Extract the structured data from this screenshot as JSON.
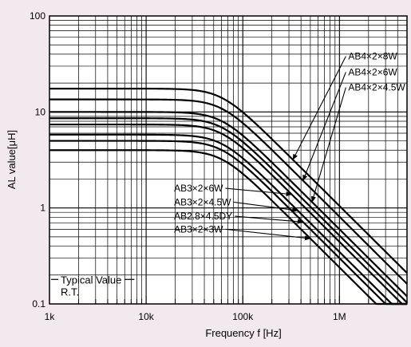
{
  "colors": {
    "background": "#f2e9ee",
    "plot_background": "#ffffff",
    "ink": "#000000"
  },
  "chart_data": {
    "type": "line",
    "title": "",
    "xlabel": "Frequency f  [Hz]",
    "ylabel": "AL value[μH]",
    "x_scale": "log",
    "y_scale": "log",
    "xlim": [
      1000,
      5000000
    ],
    "ylim": [
      0.1,
      100
    ],
    "grid": true,
    "x_ticks": [
      {
        "value": 1000,
        "label": "1k"
      },
      {
        "value": 10000,
        "label": "10k"
      },
      {
        "value": 100000,
        "label": "100k"
      },
      {
        "value": 1000000,
        "label": "1M"
      }
    ],
    "y_ticks": [
      {
        "value": 0.1,
        "label": "0.1"
      },
      {
        "value": 1,
        "label": "1"
      },
      {
        "value": 10,
        "label": "10"
      },
      {
        "value": 100,
        "label": "100"
      }
    ],
    "rolloff_slope": -1,
    "series": [
      {
        "name": "AB4×2×8W",
        "flat_value": 17.5,
        "corner_hz": 60000
      },
      {
        "name": "AB4×2×6W",
        "flat_value": 13.5,
        "corner_hz": 60000
      },
      {
        "name": "AB4×2×4.5W",
        "flat_value": 10.0,
        "corner_hz": 60000
      },
      {
        "name": "",
        "flat_value": 8.6,
        "corner_hz": 60000
      },
      {
        "name": "AB3×2×6W",
        "flat_value": 7.4,
        "corner_hz": 60000
      },
      {
        "name": "AB3×2×4.5W",
        "flat_value": 5.8,
        "corner_hz": 60000
      },
      {
        "name": "AB2.8×4.5DY",
        "flat_value": 5.0,
        "corner_hz": 60000
      },
      {
        "name": "AB3×2×3W",
        "flat_value": 4.0,
        "corner_hz": 60000
      }
    ],
    "annotations": [
      {
        "text": "AB4×2×8W",
        "series_index": 0,
        "point_hz": 330000,
        "label_hz": 1100000,
        "label_value": 38
      },
      {
        "text": "AB4×2×6W",
        "series_index": 1,
        "point_hz": 420000,
        "label_hz": 1100000,
        "label_value": 26
      },
      {
        "text": "AB4×2×4.5W",
        "series_index": 2,
        "point_hz": 520000,
        "label_hz": 1100000,
        "label_value": 18
      },
      {
        "text": "AB3×2×6W",
        "series_index": 4,
        "point_hz": 320000,
        "label_hz": 10000,
        "label_value": 1.6
      },
      {
        "text": "AB3×2×4.5W",
        "series_index": 5,
        "point_hz": 370000,
        "label_hz": 10000,
        "label_value": 1.15
      },
      {
        "text": "AB2.8×4.5DY",
        "series_index": 6,
        "point_hz": 420000,
        "label_hz": 10000,
        "label_value": 0.82
      },
      {
        "text": "AB3×2×3W",
        "series_index": 7,
        "point_hz": 500000,
        "label_hz": 10000,
        "label_value": 0.6
      }
    ],
    "notes": [
      "Typical Value",
      "R.T."
    ]
  }
}
